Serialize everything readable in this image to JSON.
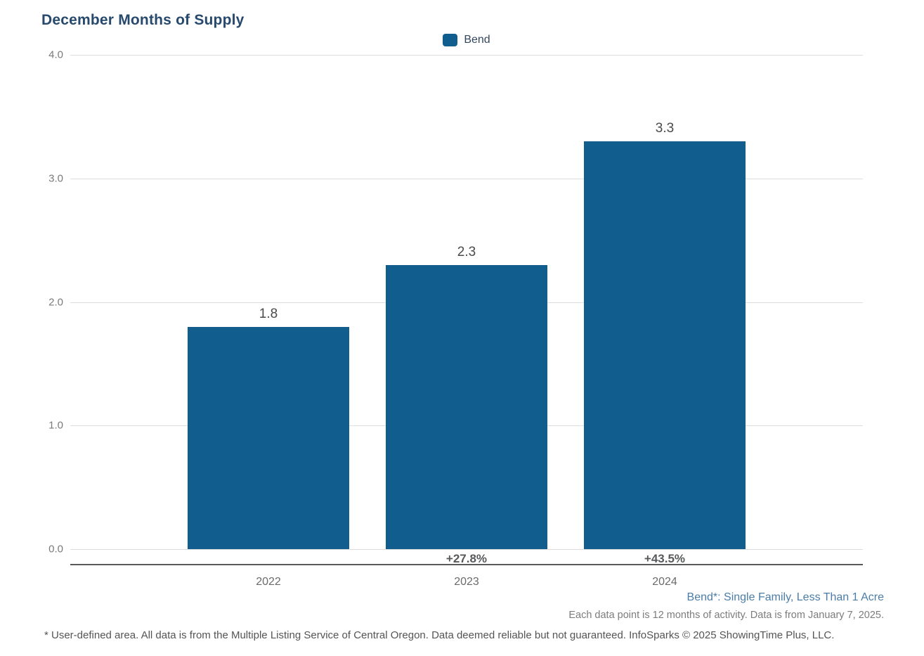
{
  "title": "December Months of Supply",
  "legend": {
    "label": "Bend",
    "swatch_color": "#115E8E"
  },
  "chart_data": {
    "type": "bar",
    "title": "December Months of Supply",
    "series_name": "Bend",
    "categories": [
      "2022",
      "2023",
      "2024"
    ],
    "values": [
      1.8,
      2.3,
      3.3
    ],
    "value_labels": [
      "1.8",
      "2.3",
      "3.3"
    ],
    "pct_change_labels": [
      "",
      "+27.8%",
      "+43.5%"
    ],
    "xlabel": "",
    "ylabel": "",
    "ylim": [
      0,
      4.0
    ],
    "yticks": [
      0.0,
      1.0,
      2.0,
      3.0,
      4.0
    ],
    "ytick_labels": [
      "0.0",
      "1.0",
      "2.0",
      "3.0",
      "4.0"
    ],
    "grid": true,
    "legend_position": "top-center",
    "bar_color": "#115E8E"
  },
  "footnotes": {
    "series_note": "Bend*: Single Family, Less Than 1 Acre",
    "data_note": "Each data point is 12 months of activity. Data is from January 7, 2025.",
    "disclaimer": "* User-defined area. All data is from the Multiple Listing Service of Central Oregon. Data deemed reliable but not guaranteed. InfoSparks © 2025 ShowingTime Plus, LLC."
  },
  "colors": {
    "title": "#26496D",
    "bar": "#115E8E",
    "gridline": "#DEDEDE",
    "axis_line": "#58595B",
    "ytick_text": "#7A7A7A",
    "value_label_text": "#4A4A4A",
    "pct_label_text": "#58595B",
    "year_label_text": "#6B6B6B",
    "series_note_text": "#4B7DA8",
    "data_note_text": "#7C7C7C",
    "disclaimer_text": "#545454"
  }
}
